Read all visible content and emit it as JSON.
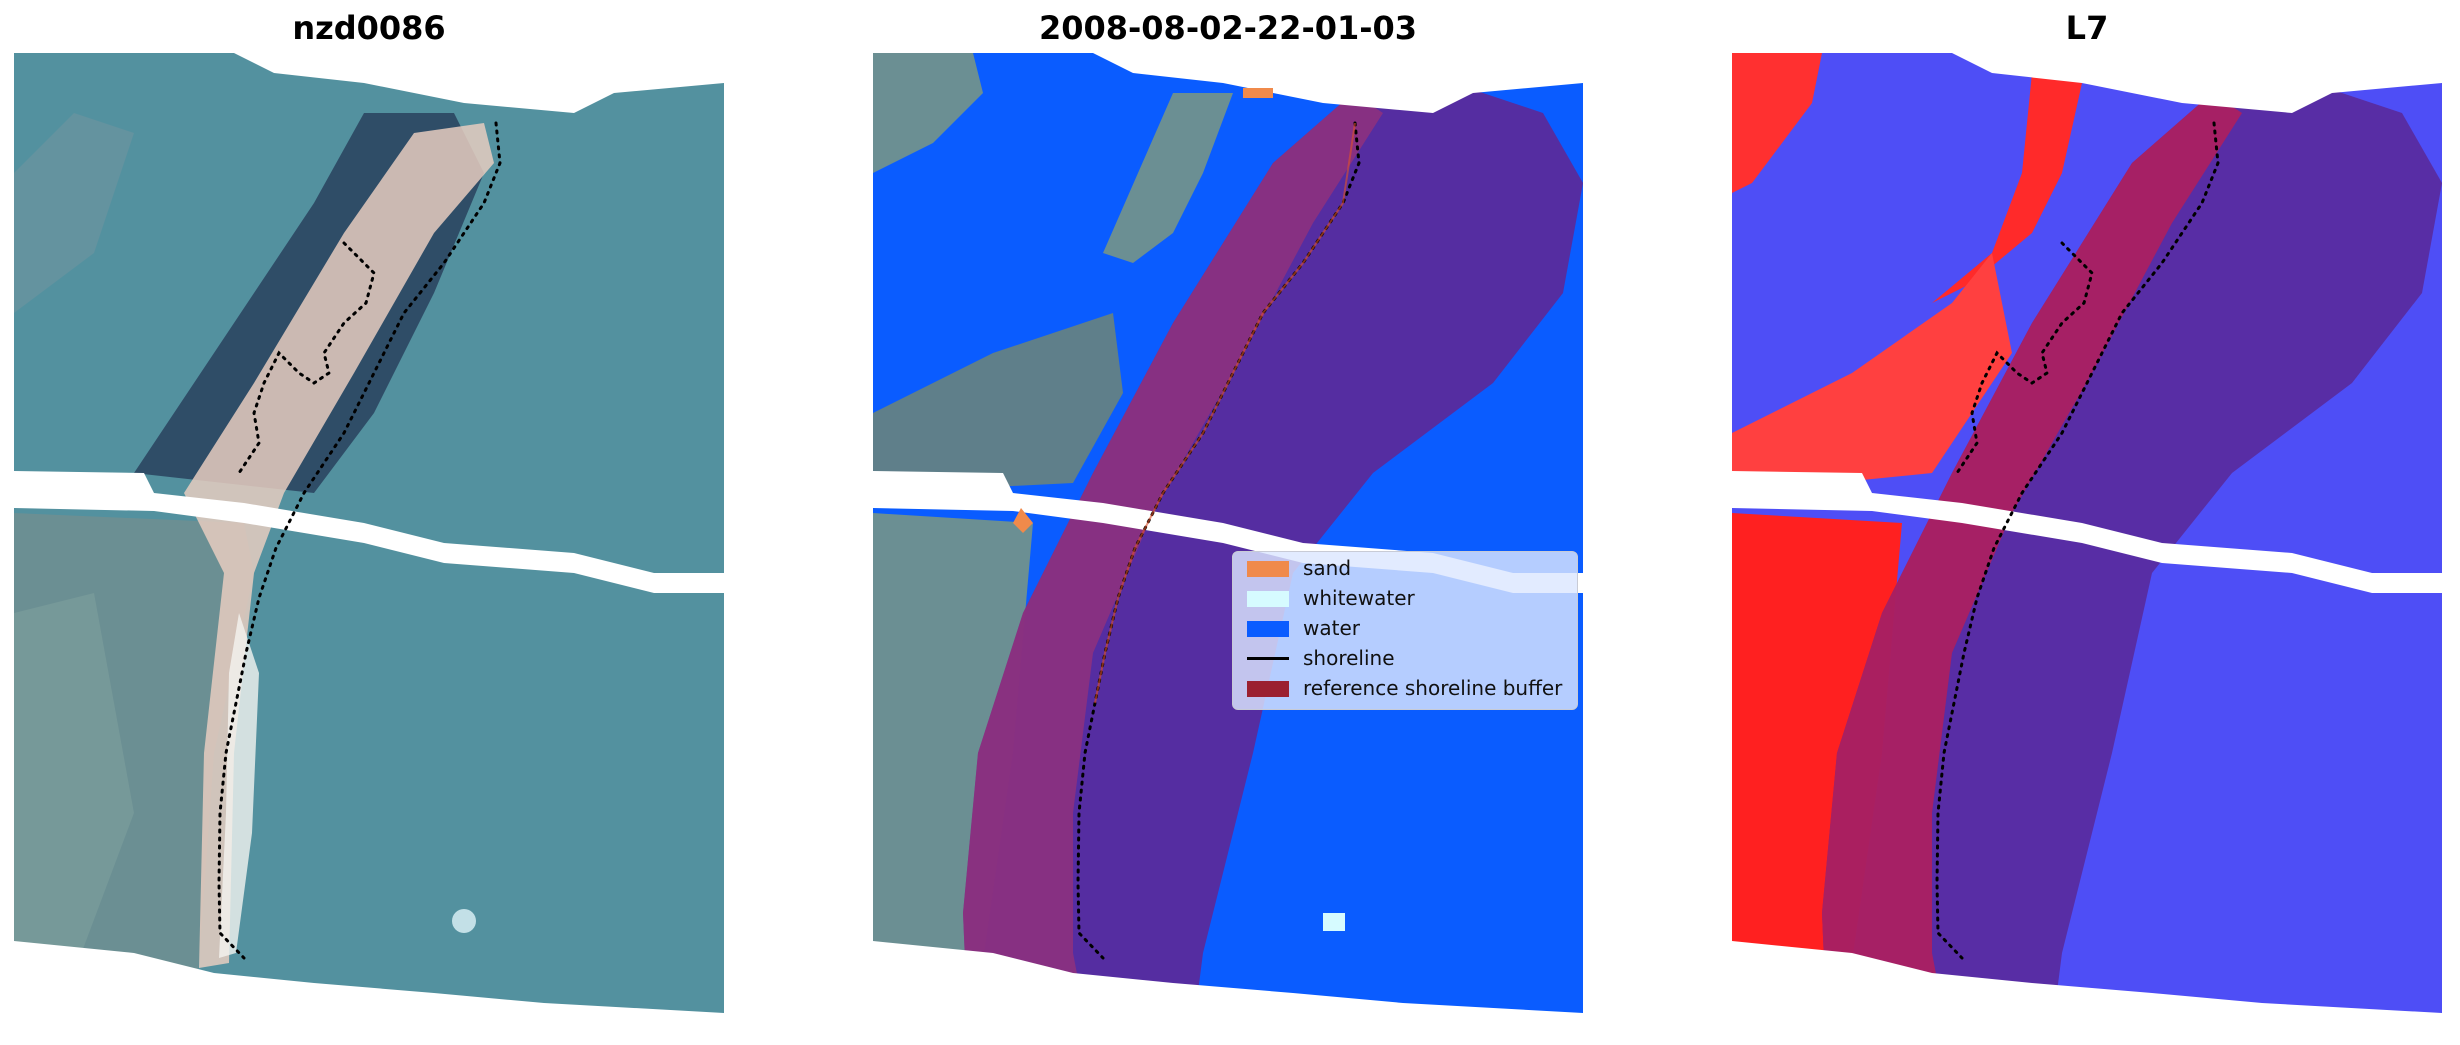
{
  "titles": {
    "left": "nzd0086",
    "middle": "2008-08-02-22-01-03",
    "right": "L7"
  },
  "legend": {
    "items": [
      {
        "label": "sand",
        "color": "#f08a4b"
      },
      {
        "label": "whitewater",
        "color": "#d6fbff"
      },
      {
        "label": "water",
        "color": "#0a5cff"
      },
      {
        "label": "shoreline",
        "color": "#000000"
      },
      {
        "label": "reference shoreline buffer",
        "color": "#9b2030"
      }
    ]
  },
  "colors": {
    "sea": "#4e8fa0",
    "land_dark": "#2e4e6a",
    "beach": "#e8d0c0",
    "buffer": "#5a2a9c",
    "water_class": "#0a5cff",
    "index_positive": "#ff2020",
    "index_negative": "#3030ff"
  }
}
